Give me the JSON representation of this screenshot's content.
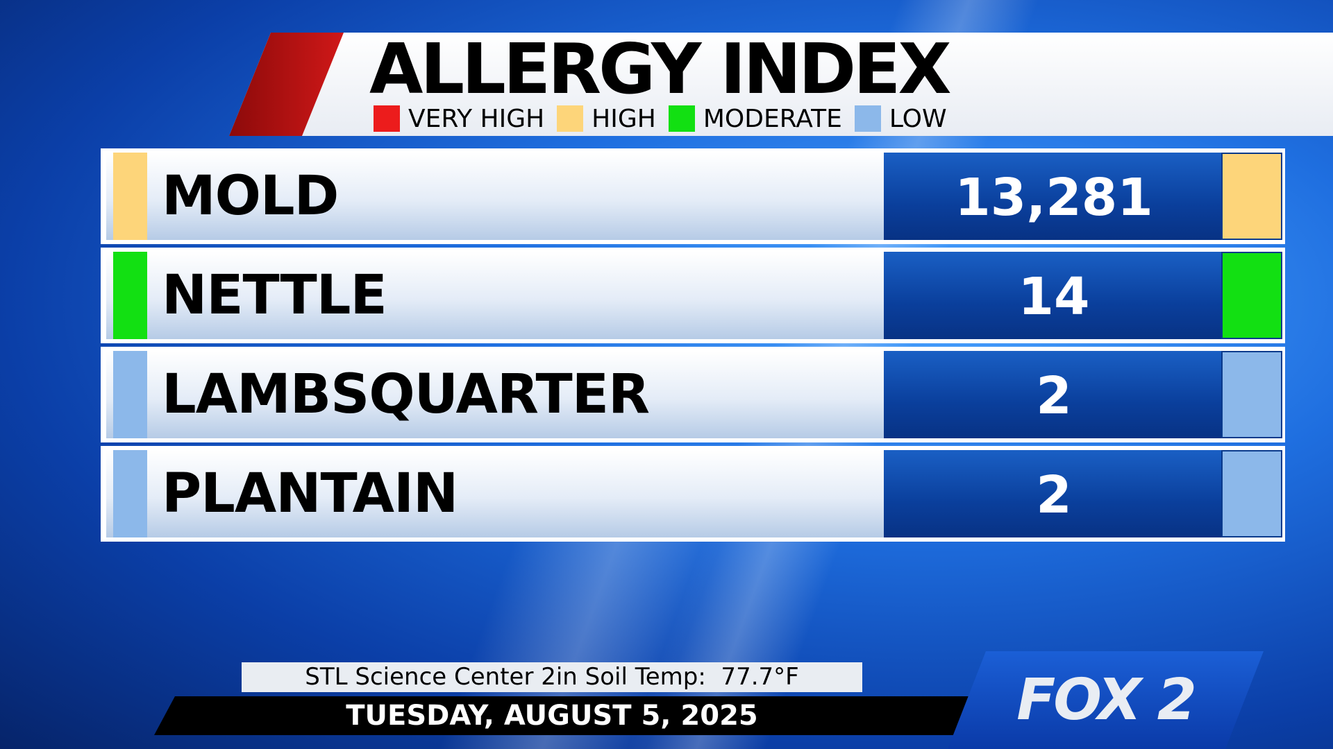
{
  "header": {
    "title": "ALLERGY INDEX"
  },
  "legend": [
    {
      "label": "VERY HIGH",
      "color": "#ec1c1c"
    },
    {
      "label": "HIGH",
      "color": "#fdd57a"
    },
    {
      "label": "MODERATE",
      "color": "#12e012"
    },
    {
      "label": "LOW",
      "color": "#8cb8ea"
    }
  ],
  "table": {
    "rows": [
      {
        "name": "MOLD",
        "value": "13,281",
        "color": "#fdd57a"
      },
      {
        "name": "NETTLE",
        "value": "14",
        "color": "#12e012"
      },
      {
        "name": "LAMBSQUARTER",
        "value": "2",
        "color": "#8cb8ea"
      },
      {
        "name": "PLANTAIN",
        "value": "2",
        "color": "#8cb8ea"
      }
    ]
  },
  "footer": {
    "soil_temp": "STL Science Center 2in Soil Temp:  77.7°F",
    "date": "TUESDAY, AUGUST 5, 2025",
    "logo": "FOX 2"
  }
}
